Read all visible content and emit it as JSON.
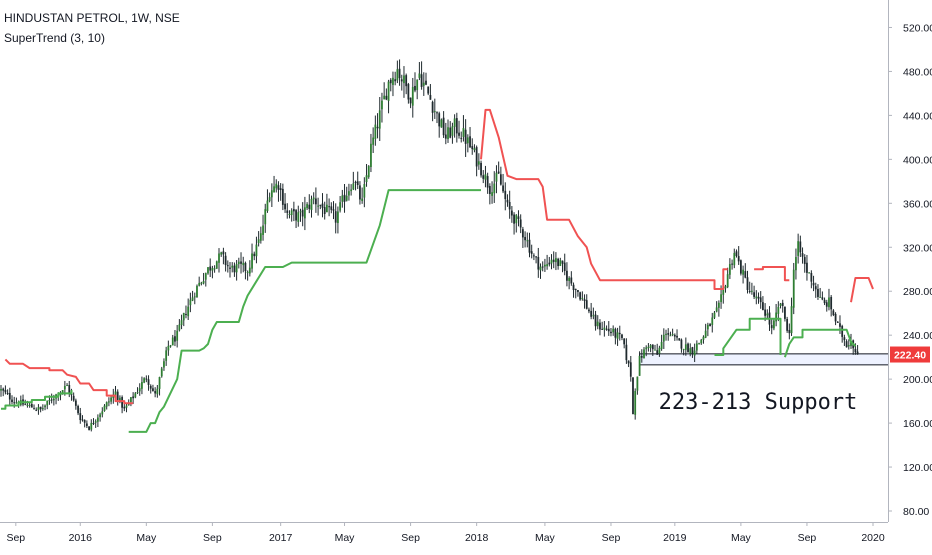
{
  "chart_data": {
    "type": "candlestick",
    "title": "HINDUSTAN PETROL, 1W, NSE",
    "indicator": "SuperTrend (3, 10)",
    "ylim": [
      70,
      545
    ],
    "y_ticks": [
      80,
      120,
      160,
      200,
      240,
      280,
      320,
      360,
      400,
      440,
      480,
      520
    ],
    "y_tick_labels": [
      "80.00",
      "120.00",
      "160.00",
      "200.00",
      "240.00",
      "280.00",
      "320.00",
      "360.00",
      "400.00",
      "440.00",
      "480.00",
      "520.00"
    ],
    "x_ticks": [
      "Sep",
      "2016",
      "May",
      "Sep",
      "2017",
      "May",
      "Sep",
      "2018",
      "May",
      "Sep",
      "2019",
      "May",
      "Sep",
      "2020"
    ],
    "last_price": 222.4,
    "last_price_label": "222.40",
    "annotation": "223-213 Support",
    "support_zone": [
      213,
      223
    ],
    "close_path": [
      [
        0,
        190
      ],
      [
        6,
        180
      ],
      [
        12,
        176
      ],
      [
        18,
        172
      ],
      [
        24,
        184
      ],
      [
        30,
        194
      ],
      [
        36,
        165
      ],
      [
        40,
        156
      ],
      [
        46,
        172
      ],
      [
        52,
        188
      ],
      [
        56,
        172
      ],
      [
        62,
        190
      ],
      [
        66,
        202
      ],
      [
        70,
        185
      ],
      [
        76,
        230
      ],
      [
        80,
        240
      ],
      [
        84,
        262
      ],
      [
        88,
        280
      ],
      [
        94,
        300
      ],
      [
        100,
        312
      ],
      [
        104,
        300
      ],
      [
        108,
        302
      ],
      [
        112,
        300
      ],
      [
        118,
        330
      ],
      [
        122,
        372
      ],
      [
        126,
        378
      ],
      [
        130,
        350
      ],
      [
        136,
        348
      ],
      [
        142,
        364
      ],
      [
        146,
        356
      ],
      [
        152,
        346
      ],
      [
        156,
        366
      ],
      [
        160,
        382
      ],
      [
        164,
        360
      ],
      [
        168,
        410
      ],
      [
        172,
        440
      ],
      [
        176,
        470
      ],
      [
        180,
        482
      ],
      [
        186,
        458
      ],
      [
        190,
        478
      ],
      [
        196,
        450
      ],
      [
        202,
        420
      ],
      [
        206,
        430
      ],
      [
        210,
        422
      ],
      [
        214,
        408
      ],
      [
        218,
        392
      ],
      [
        222,
        374
      ],
      [
        226,
        384
      ],
      [
        230,
        356
      ],
      [
        234,
        344
      ],
      [
        238,
        330
      ],
      [
        242,
        310
      ],
      [
        246,
        300
      ],
      [
        250,
        310
      ],
      [
        254,
        304
      ],
      [
        258,
        290
      ],
      [
        262,
        280
      ],
      [
        266,
        266
      ],
      [
        270,
        250
      ],
      [
        274,
        246
      ],
      [
        278,
        242
      ],
      [
        282,
        236
      ],
      [
        286,
        204
      ],
      [
        287,
        168
      ],
      [
        288,
        192
      ],
      [
        290,
        218
      ],
      [
        294,
        232
      ],
      [
        298,
        222
      ],
      [
        302,
        244
      ],
      [
        306,
        236
      ],
      [
        310,
        230
      ],
      [
        314,
        226
      ],
      [
        318,
        236
      ],
      [
        322,
        250
      ],
      [
        326,
        265
      ],
      [
        330,
        296
      ],
      [
        333,
        316
      ],
      [
        336,
        300
      ],
      [
        340,
        280
      ],
      [
        344,
        270
      ],
      [
        348,
        258
      ],
      [
        350,
        244
      ],
      [
        354,
        270
      ],
      [
        358,
        240
      ],
      [
        360,
        300
      ],
      [
        362,
        320
      ],
      [
        364,
        310
      ],
      [
        366,
        298
      ],
      [
        368,
        292
      ],
      [
        372,
        272
      ],
      [
        374,
        268
      ],
      [
        376,
        270
      ],
      [
        380,
        248
      ],
      [
        382,
        240
      ],
      [
        384,
        232
      ],
      [
        386,
        236
      ],
      [
        388,
        226
      ],
      [
        389,
        222.4
      ]
    ],
    "supertrend_segments": [
      {
        "trend": "up",
        "points": [
          [
            0,
            173
          ],
          [
            2,
            173
          ],
          [
            2,
            176
          ],
          [
            8,
            176
          ],
          [
            8,
            179
          ],
          [
            14,
            179
          ],
          [
            14,
            181
          ],
          [
            20,
            181
          ],
          [
            20,
            184
          ],
          [
            26,
            184
          ],
          [
            26,
            187
          ],
          [
            32,
            187
          ],
          [
            32,
            190
          ]
        ]
      },
      {
        "trend": "down",
        "points": [
          [
            2,
            218
          ],
          [
            4,
            214
          ],
          [
            10,
            214
          ],
          [
            13,
            210
          ],
          [
            22,
            210
          ],
          [
            22,
            208
          ],
          [
            28,
            208
          ],
          [
            30,
            204
          ],
          [
            34,
            202
          ],
          [
            36,
            196
          ],
          [
            40,
            196
          ],
          [
            42,
            190
          ],
          [
            48,
            190
          ],
          [
            48,
            185
          ],
          [
            52,
            185
          ],
          [
            52,
            180
          ],
          [
            56,
            180
          ],
          [
            56,
            178
          ],
          [
            60,
            178
          ]
        ]
      },
      {
        "trend": "up",
        "points": [
          [
            58,
            152
          ],
          [
            66,
            152
          ],
          [
            68,
            160
          ],
          [
            70,
            160
          ],
          [
            72,
            170
          ],
          [
            74,
            175
          ],
          [
            80,
            200
          ],
          [
            82,
            226
          ],
          [
            90,
            226
          ],
          [
            92,
            228
          ],
          [
            94,
            232
          ],
          [
            96,
            245
          ],
          [
            98,
            252
          ],
          [
            108,
            252
          ],
          [
            110,
            266
          ],
          [
            112,
            276
          ],
          [
            120,
            302
          ],
          [
            128,
            302
          ],
          [
            132,
            306
          ],
          [
            166,
            306
          ],
          [
            172,
            340
          ],
          [
            176,
            372
          ],
          [
            206,
            372
          ],
          [
            212,
            372
          ],
          [
            218,
            372
          ]
        ]
      },
      {
        "trend": "down",
        "points": [
          [
            218,
            400
          ],
          [
            220,
            445
          ],
          [
            222,
            445
          ],
          [
            226,
            420
          ],
          [
            230,
            385
          ],
          [
            234,
            382
          ],
          [
            244,
            382
          ],
          [
            246,
            375
          ],
          [
            248,
            345
          ],
          [
            258,
            345
          ],
          [
            262,
            330
          ],
          [
            266,
            320
          ],
          [
            268,
            305
          ],
          [
            272,
            290
          ],
          [
            324,
            290
          ],
          [
            324,
            282
          ],
          [
            328,
            282
          ],
          [
            328,
            300
          ],
          [
            330,
            300
          ]
        ]
      },
      {
        "trend": "up",
        "points": [
          [
            324,
            222
          ],
          [
            328,
            222
          ],
          [
            328,
            228
          ],
          [
            334,
            245
          ],
          [
            340,
            245
          ],
          [
            340,
            255
          ],
          [
            354,
            255
          ],
          [
            354,
            222
          ]
        ]
      },
      {
        "trend": "down",
        "points": [
          [
            342,
            300
          ],
          [
            346,
            300
          ],
          [
            346,
            302
          ],
          [
            356,
            302
          ],
          [
            356,
            290
          ],
          [
            358,
            290
          ]
        ]
      },
      {
        "trend": "up",
        "points": [
          [
            356,
            220
          ],
          [
            358,
            232
          ],
          [
            360,
            238
          ],
          [
            364,
            238
          ],
          [
            364,
            245
          ],
          [
            384,
            245
          ],
          [
            386,
            234
          ],
          [
            388,
            230
          ]
        ]
      },
      {
        "trend": "down",
        "points": [
          [
            386,
            270
          ],
          [
            388,
            292
          ],
          [
            394,
            292
          ],
          [
            396,
            282
          ]
        ]
      }
    ]
  },
  "colors": {
    "background": "#ffffff",
    "up_candle": "#26a69a",
    "down_candle": "#ef5350",
    "wick": "#1f2a2e",
    "supertrend_up": "#4caf50",
    "supertrend_down": "#f05252",
    "price_tag": "#ef3b3b",
    "support_fill": "#eef2ff",
    "axis_text": "#131722"
  }
}
